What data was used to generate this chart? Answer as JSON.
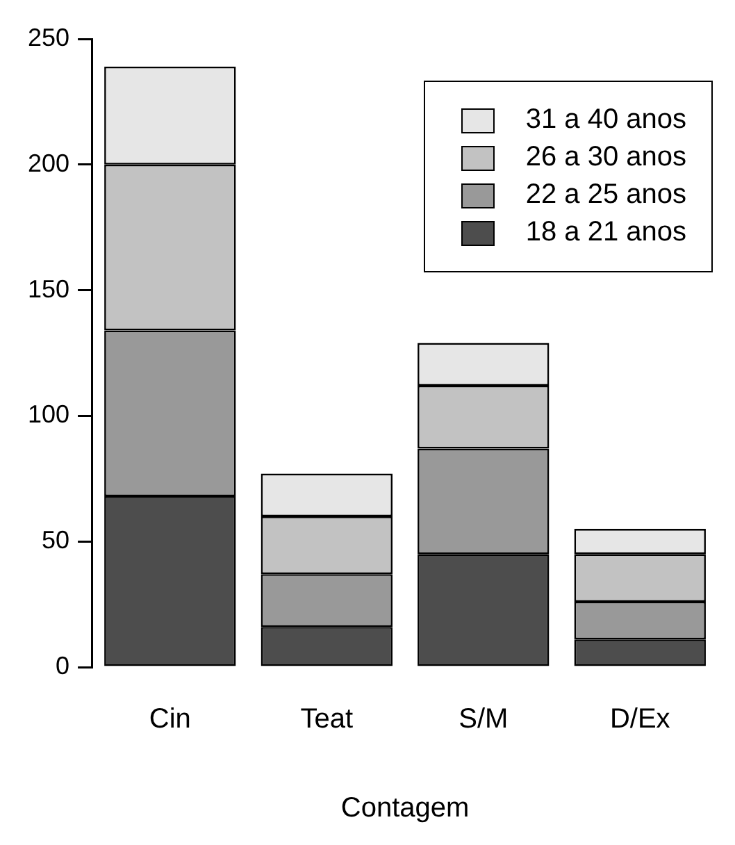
{
  "chart_data": {
    "type": "bar",
    "xlabel": "Contagem",
    "categories": [
      "Cin",
      "Teat",
      "S/M",
      "D/Ex"
    ],
    "stacked": true,
    "legend": "top right",
    "grid": false,
    "ylim": [
      0,
      250
    ],
    "yticks": [
      0,
      50,
      100,
      150,
      200,
      250
    ],
    "series": [
      {
        "name": "18 a 21 anos",
        "color": "#4d4d4d",
        "values": [
          68,
          16,
          45,
          11
        ]
      },
      {
        "name": "22 a 25 anos",
        "color": "#999999",
        "values": [
          66,
          21,
          42,
          15
        ]
      },
      {
        "name": "26 a 30 anos",
        "color": "#c2c2c2",
        "values": [
          66,
          23,
          25,
          19
        ]
      },
      {
        "name": "31 a 40 anos",
        "color": "#e6e6e6",
        "values": [
          39,
          17,
          17,
          10
        ]
      }
    ]
  }
}
